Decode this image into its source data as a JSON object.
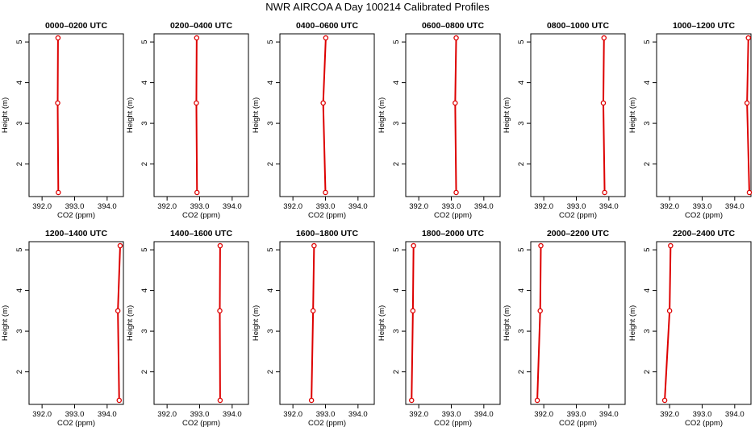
{
  "title": "NWR AIRCOA A  Day 100214  Calibrated Profiles",
  "chart_data": {
    "type": "line",
    "title": "NWR AIRCOA A  Day 100214  Calibrated Profiles",
    "xlabel": "CO2 (ppm)",
    "ylabel": "Height (m)",
    "xlim": [
      391.6,
      394.5
    ],
    "ylim": [
      1.2,
      5.2
    ],
    "x_ticks": [
      392.0,
      393.0,
      394.0
    ],
    "x_tick_labels": [
      "392.0",
      "393.0",
      "394.0"
    ],
    "y_ticks": [
      2,
      3,
      4,
      5
    ],
    "y_tick_labels": [
      "2",
      "3",
      "4",
      "5"
    ],
    "line_color": "#dd0000",
    "marker_color": "#dd0000",
    "panels": [
      {
        "title": "0000–0200 UTC",
        "points": [
          {
            "x": 392.5,
            "y": 1.3
          },
          {
            "x": 392.48,
            "y": 3.5
          },
          {
            "x": 392.49,
            "y": 5.1
          }
        ]
      },
      {
        "title": "0200–0400 UTC",
        "points": [
          {
            "x": 392.92,
            "y": 1.3
          },
          {
            "x": 392.9,
            "y": 3.5
          },
          {
            "x": 392.91,
            "y": 5.1
          }
        ]
      },
      {
        "title": "0400–0600 UTC",
        "points": [
          {
            "x": 393.0,
            "y": 1.3
          },
          {
            "x": 392.93,
            "y": 3.5
          },
          {
            "x": 393.01,
            "y": 5.1
          }
        ]
      },
      {
        "title": "0600–0800 UTC",
        "points": [
          {
            "x": 393.15,
            "y": 1.3
          },
          {
            "x": 393.12,
            "y": 3.5
          },
          {
            "x": 393.15,
            "y": 5.1
          }
        ]
      },
      {
        "title": "0800–1000 UTC",
        "points": [
          {
            "x": 393.87,
            "y": 1.3
          },
          {
            "x": 393.83,
            "y": 3.5
          },
          {
            "x": 393.85,
            "y": 5.1
          }
        ]
      },
      {
        "title": "1000–1200 UTC",
        "points": [
          {
            "x": 394.45,
            "y": 1.3
          },
          {
            "x": 394.38,
            "y": 3.5
          },
          {
            "x": 394.42,
            "y": 5.1
          }
        ]
      },
      {
        "title": "1200–1400 UTC",
        "points": [
          {
            "x": 394.37,
            "y": 1.3
          },
          {
            "x": 394.33,
            "y": 3.5
          },
          {
            "x": 394.4,
            "y": 5.1
          }
        ]
      },
      {
        "title": "1400–1600 UTC",
        "points": [
          {
            "x": 393.63,
            "y": 1.3
          },
          {
            "x": 393.62,
            "y": 3.5
          },
          {
            "x": 393.63,
            "y": 5.1
          }
        ]
      },
      {
        "title": "1600–1800 UTC",
        "points": [
          {
            "x": 392.57,
            "y": 1.3
          },
          {
            "x": 392.62,
            "y": 3.5
          },
          {
            "x": 392.65,
            "y": 5.1
          }
        ]
      },
      {
        "title": "1800–2000 UTC",
        "points": [
          {
            "x": 391.78,
            "y": 1.3
          },
          {
            "x": 391.82,
            "y": 3.5
          },
          {
            "x": 391.84,
            "y": 5.1
          }
        ]
      },
      {
        "title": "2000–2200 UTC",
        "points": [
          {
            "x": 391.8,
            "y": 1.3
          },
          {
            "x": 391.89,
            "y": 3.5
          },
          {
            "x": 391.91,
            "y": 5.1
          }
        ]
      },
      {
        "title": "2200–2400 UTC",
        "points": [
          {
            "x": 391.85,
            "y": 1.3
          },
          {
            "x": 392.0,
            "y": 3.5
          },
          {
            "x": 392.03,
            "y": 5.1
          }
        ]
      }
    ]
  }
}
